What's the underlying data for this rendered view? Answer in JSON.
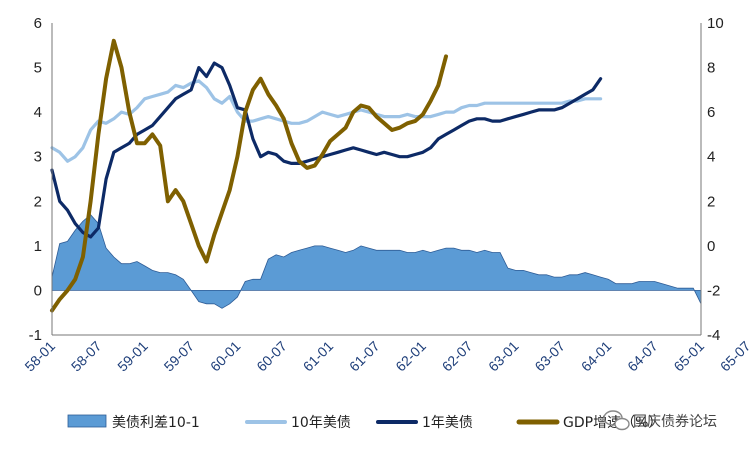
{
  "chart_data": {
    "type": "line",
    "title": "",
    "x_ticks": [
      "58-01",
      "58-07",
      "59-01",
      "59-07",
      "60-01",
      "60-07",
      "61-01",
      "61-07",
      "62-01",
      "62-07",
      "63-01",
      "63-07",
      "64-01",
      "64-07",
      "65-01",
      "65-07"
    ],
    "y_left": {
      "range": [
        -1,
        6
      ],
      "ticks": [
        "-1",
        "0",
        "1",
        "2",
        "3",
        "4",
        "5",
        "6"
      ]
    },
    "y_right": {
      "range": [
        -4,
        10
      ],
      "ticks": [
        "-4",
        "-2",
        "0",
        "2",
        "4",
        "6",
        "8",
        "10"
      ]
    },
    "legend": [
      "美债利差10-1",
      "10年美债",
      "1年美债",
      "GDP增速（%）"
    ],
    "colors": {
      "spread": "#5b9bd5",
      "ten_year": "#9dc3e6",
      "one_year": "#0d2a66",
      "gdp": "#7f6000"
    },
    "series": [
      {
        "name": "美债利差10-1",
        "axis": "left",
        "kind": "area",
        "points": [
          [
            0,
            0.3
          ],
          [
            1,
            1.05
          ],
          [
            2,
            1.1
          ],
          [
            3,
            1.35
          ],
          [
            4,
            1.55
          ],
          [
            5,
            1.7
          ],
          [
            6,
            1.5
          ],
          [
            7,
            0.95
          ],
          [
            8,
            0.75
          ],
          [
            9,
            0.6
          ],
          [
            10,
            0.6
          ],
          [
            11,
            0.65
          ],
          [
            12,
            0.55
          ],
          [
            13,
            0.45
          ],
          [
            14,
            0.4
          ],
          [
            15,
            0.4
          ],
          [
            16,
            0.35
          ],
          [
            17,
            0.25
          ],
          [
            18,
            0.0
          ],
          [
            19,
            -0.25
          ],
          [
            20,
            -0.3
          ],
          [
            21,
            -0.3
          ],
          [
            22,
            -0.4
          ],
          [
            23,
            -0.3
          ],
          [
            24,
            -0.15
          ],
          [
            25,
            0.2
          ],
          [
            26,
            0.25
          ],
          [
            27,
            0.25
          ],
          [
            28,
            0.7
          ],
          [
            29,
            0.8
          ],
          [
            30,
            0.75
          ],
          [
            31,
            0.85
          ],
          [
            32,
            0.9
          ],
          [
            33,
            0.95
          ],
          [
            34,
            1.0
          ],
          [
            35,
            1.0
          ],
          [
            36,
            0.95
          ],
          [
            37,
            0.9
          ],
          [
            38,
            0.85
          ],
          [
            39,
            0.9
          ],
          [
            40,
            1.0
          ],
          [
            41,
            0.95
          ],
          [
            42,
            0.9
          ],
          [
            43,
            0.9
          ],
          [
            44,
            0.9
          ],
          [
            45,
            0.9
          ],
          [
            46,
            0.85
          ],
          [
            47,
            0.85
          ],
          [
            48,
            0.9
          ],
          [
            49,
            0.85
          ],
          [
            50,
            0.9
          ],
          [
            51,
            0.95
          ],
          [
            52,
            0.95
          ],
          [
            53,
            0.9
          ],
          [
            54,
            0.9
          ],
          [
            55,
            0.85
          ],
          [
            56,
            0.9
          ],
          [
            57,
            0.85
          ],
          [
            58,
            0.85
          ],
          [
            59,
            0.5
          ],
          [
            60,
            0.45
          ],
          [
            61,
            0.45
          ],
          [
            62,
            0.4
          ],
          [
            63,
            0.35
          ],
          [
            64,
            0.35
          ],
          [
            65,
            0.3
          ],
          [
            66,
            0.3
          ],
          [
            67,
            0.35
          ],
          [
            68,
            0.35
          ],
          [
            69,
            0.4
          ],
          [
            70,
            0.35
          ],
          [
            71,
            0.3
          ],
          [
            72,
            0.25
          ],
          [
            73,
            0.15
          ],
          [
            74,
            0.15
          ],
          [
            75,
            0.15
          ],
          [
            76,
            0.2
          ],
          [
            77,
            0.2
          ],
          [
            78,
            0.2
          ],
          [
            79,
            0.15
          ],
          [
            80,
            0.1
          ],
          [
            81,
            0.05
          ],
          [
            82,
            0.05
          ],
          [
            83,
            0.05
          ],
          [
            84,
            -0.3
          ]
        ]
      },
      {
        "name": "10年美债",
        "axis": "left",
        "kind": "line",
        "points": [
          [
            0,
            3.2
          ],
          [
            1,
            3.1
          ],
          [
            2,
            2.9
          ],
          [
            3,
            3.0
          ],
          [
            4,
            3.2
          ],
          [
            5,
            3.6
          ],
          [
            6,
            3.8
          ],
          [
            7,
            3.75
          ],
          [
            8,
            3.85
          ],
          [
            9,
            4.0
          ],
          [
            10,
            3.95
          ],
          [
            11,
            4.1
          ],
          [
            12,
            4.3
          ],
          [
            13,
            4.35
          ],
          [
            14,
            4.4
          ],
          [
            15,
            4.45
          ],
          [
            16,
            4.6
          ],
          [
            17,
            4.55
          ],
          [
            18,
            4.65
          ],
          [
            19,
            4.7
          ],
          [
            20,
            4.55
          ],
          [
            21,
            4.3
          ],
          [
            22,
            4.2
          ],
          [
            23,
            4.35
          ],
          [
            24,
            4.0
          ],
          [
            25,
            3.8
          ],
          [
            26,
            3.8
          ],
          [
            27,
            3.85
          ],
          [
            28,
            3.9
          ],
          [
            29,
            3.85
          ],
          [
            30,
            3.8
          ],
          [
            31,
            3.75
          ],
          [
            32,
            3.75
          ],
          [
            33,
            3.8
          ],
          [
            34,
            3.9
          ],
          [
            35,
            4.0
          ],
          [
            36,
            3.95
          ],
          [
            37,
            3.9
          ],
          [
            38,
            3.95
          ],
          [
            39,
            4.0
          ],
          [
            40,
            4.05
          ],
          [
            41,
            4.0
          ],
          [
            42,
            3.95
          ],
          [
            43,
            3.9
          ],
          [
            44,
            3.9
          ],
          [
            45,
            3.9
          ],
          [
            46,
            3.95
          ],
          [
            47,
            3.9
          ],
          [
            48,
            3.9
          ],
          [
            49,
            3.9
          ],
          [
            50,
            3.95
          ],
          [
            51,
            4.0
          ],
          [
            52,
            4.0
          ],
          [
            53,
            4.1
          ],
          [
            54,
            4.15
          ],
          [
            55,
            4.15
          ],
          [
            56,
            4.2
          ],
          [
            57,
            4.2
          ],
          [
            58,
            4.2
          ],
          [
            59,
            4.2
          ],
          [
            60,
            4.2
          ],
          [
            61,
            4.2
          ],
          [
            62,
            4.2
          ],
          [
            63,
            4.2
          ],
          [
            64,
            4.2
          ],
          [
            65,
            4.2
          ],
          [
            66,
            4.2
          ],
          [
            67,
            4.25
          ],
          [
            68,
            4.25
          ],
          [
            69,
            4.3
          ],
          [
            70,
            4.3
          ],
          [
            71,
            4.3
          ]
        ]
      },
      {
        "name": "1年美债",
        "axis": "left",
        "kind": "line",
        "points": [
          [
            0,
            2.7
          ],
          [
            1,
            2.0
          ],
          [
            2,
            1.8
          ],
          [
            3,
            1.5
          ],
          [
            4,
            1.3
          ],
          [
            5,
            1.2
          ],
          [
            6,
            1.4
          ],
          [
            7,
            2.5
          ],
          [
            8,
            3.1
          ],
          [
            9,
            3.2
          ],
          [
            10,
            3.3
          ],
          [
            11,
            3.5
          ],
          [
            12,
            3.6
          ],
          [
            13,
            3.7
          ],
          [
            14,
            3.9
          ],
          [
            15,
            4.1
          ],
          [
            16,
            4.3
          ],
          [
            17,
            4.4
          ],
          [
            18,
            4.5
          ],
          [
            19,
            5.0
          ],
          [
            20,
            4.8
          ],
          [
            21,
            5.1
          ],
          [
            22,
            5.0
          ],
          [
            23,
            4.6
          ],
          [
            24,
            4.1
          ],
          [
            25,
            4.05
          ],
          [
            26,
            3.4
          ],
          [
            27,
            3.0
          ],
          [
            28,
            3.1
          ],
          [
            29,
            3.05
          ],
          [
            30,
            2.9
          ],
          [
            31,
            2.85
          ],
          [
            32,
            2.85
          ],
          [
            33,
            2.9
          ],
          [
            34,
            2.95
          ],
          [
            35,
            3.0
          ],
          [
            36,
            3.05
          ],
          [
            37,
            3.1
          ],
          [
            38,
            3.15
          ],
          [
            39,
            3.2
          ],
          [
            40,
            3.15
          ],
          [
            41,
            3.1
          ],
          [
            42,
            3.05
          ],
          [
            43,
            3.1
          ],
          [
            44,
            3.05
          ],
          [
            45,
            3.0
          ],
          [
            46,
            3.0
          ],
          [
            47,
            3.05
          ],
          [
            48,
            3.1
          ],
          [
            49,
            3.2
          ],
          [
            50,
            3.4
          ],
          [
            51,
            3.5
          ],
          [
            52,
            3.6
          ],
          [
            53,
            3.7
          ],
          [
            54,
            3.8
          ],
          [
            55,
            3.85
          ],
          [
            56,
            3.85
          ],
          [
            57,
            3.8
          ],
          [
            58,
            3.8
          ],
          [
            59,
            3.85
          ],
          [
            60,
            3.9
          ],
          [
            61,
            3.95
          ],
          [
            62,
            4.0
          ],
          [
            63,
            4.05
          ],
          [
            64,
            4.05
          ],
          [
            65,
            4.05
          ],
          [
            66,
            4.1
          ],
          [
            67,
            4.2
          ],
          [
            68,
            4.3
          ],
          [
            69,
            4.4
          ],
          [
            70,
            4.5
          ],
          [
            71,
            4.75
          ]
        ]
      },
      {
        "name": "GDP增速（%）",
        "axis": "right",
        "kind": "line",
        "points": [
          [
            0,
            -2.9
          ],
          [
            1,
            -2.4
          ],
          [
            2,
            -2.0
          ],
          [
            3,
            -1.5
          ],
          [
            4,
            -0.5
          ],
          [
            5,
            2.0
          ],
          [
            6,
            5.0
          ],
          [
            7,
            7.5
          ],
          [
            8,
            9.2
          ],
          [
            9,
            8.0
          ],
          [
            10,
            6.0
          ],
          [
            11,
            4.6
          ],
          [
            12,
            4.6
          ],
          [
            13,
            5.0
          ],
          [
            14,
            4.5
          ],
          [
            15,
            2.0
          ],
          [
            16,
            2.5
          ],
          [
            17,
            2.0
          ],
          [
            18,
            1.0
          ],
          [
            19,
            0.0
          ],
          [
            20,
            -0.7
          ],
          [
            21,
            0.5
          ],
          [
            22,
            1.5
          ],
          [
            23,
            2.5
          ],
          [
            24,
            4.0
          ],
          [
            25,
            6.0
          ],
          [
            26,
            7.0
          ],
          [
            27,
            7.5
          ],
          [
            28,
            6.8
          ],
          [
            29,
            6.3
          ],
          [
            30,
            5.7
          ],
          [
            31,
            4.6
          ],
          [
            32,
            3.8
          ],
          [
            33,
            3.5
          ],
          [
            34,
            3.6
          ],
          [
            35,
            4.1
          ],
          [
            36,
            4.7
          ],
          [
            37,
            5.0
          ],
          [
            38,
            5.3
          ],
          [
            39,
            6.0
          ],
          [
            40,
            6.3
          ],
          [
            41,
            6.2
          ],
          [
            42,
            5.8
          ],
          [
            43,
            5.5
          ],
          [
            44,
            5.2
          ],
          [
            45,
            5.3
          ],
          [
            46,
            5.5
          ],
          [
            47,
            5.6
          ],
          [
            48,
            5.9
          ],
          [
            49,
            6.5
          ],
          [
            50,
            7.2
          ],
          [
            51,
            8.5
          ]
        ]
      }
    ]
  },
  "watermark": {
    "text": "国庆债券论坛"
  }
}
